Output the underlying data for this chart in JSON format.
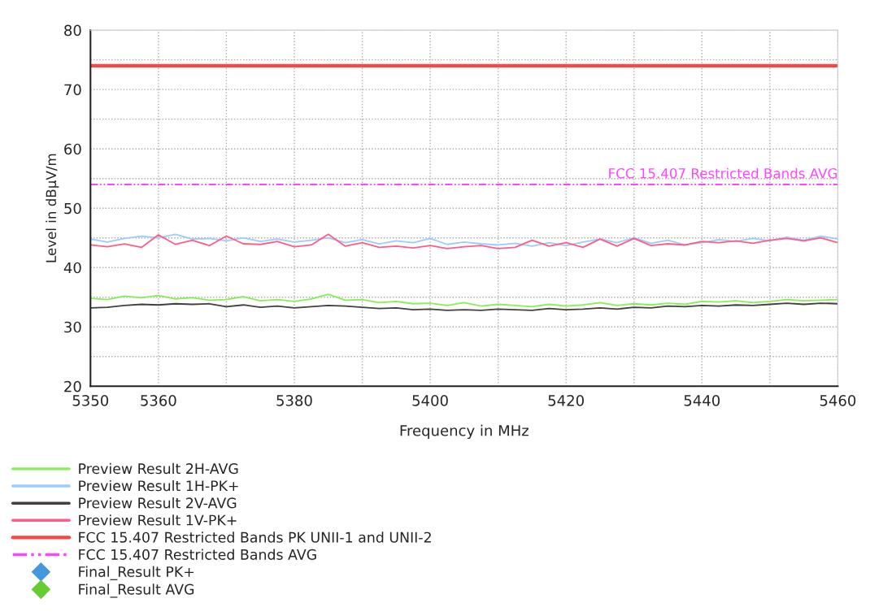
{
  "chart_data": {
    "type": "line",
    "xlabel": "Frequency in MHz",
    "ylabel": "Level in dBµV/m",
    "xlim": [
      5350,
      5460
    ],
    "ylim": [
      20,
      80
    ],
    "xticks": [
      5350,
      5360,
      {
        "value": 5370,
        "label": null
      },
      5380,
      {
        "value": 5390,
        "label": null
      },
      5400,
      {
        "value": 5410,
        "label": null
      },
      5420,
      {
        "value": 5430,
        "label": null
      },
      5440,
      {
        "value": 5450,
        "label": null
      },
      5460
    ],
    "yticks": [
      20,
      {
        "value": 25,
        "label": null
      },
      30,
      {
        "value": 35,
        "label": null
      },
      40,
      {
        "value": 45,
        "label": null
      },
      50,
      {
        "value": 55,
        "label": null
      },
      60,
      {
        "value": 65,
        "label": null
      },
      70,
      {
        "value": 75,
        "label": null
      },
      80
    ],
    "grid": true,
    "legend": "bottom",
    "marker": "none",
    "x": [
      5350,
      5352.5,
      5355,
      5357.5,
      5360,
      5362.5,
      5365,
      5367.5,
      5370,
      5372.5,
      5375,
      5377.5,
      5380,
      5382.5,
      5385,
      5387.5,
      5390,
      5392.5,
      5395,
      5397.5,
      5400,
      5402.5,
      5405,
      5407.5,
      5410,
      5412.5,
      5415,
      5417.5,
      5420,
      5422.5,
      5425,
      5427.5,
      5430,
      5432.5,
      5435,
      5437.5,
      5440,
      5442.5,
      5445,
      5447.5,
      5450,
      5452.5,
      5455,
      5457.5,
      5460
    ],
    "series": [
      {
        "name": "Preview Result 2H-AVG",
        "color": "#88ee55",
        "values": [
          34.8,
          34.6,
          35.2,
          34.9,
          35.3,
          34.7,
          34.9,
          34.5,
          34.6,
          35.1,
          34.4,
          34.6,
          34.3,
          34.7,
          35.5,
          34.5,
          34.6,
          34.1,
          34.3,
          33.9,
          34.0,
          33.6,
          34.1,
          33.5,
          33.8,
          33.6,
          33.4,
          33.8,
          33.5,
          33.7,
          34.1,
          33.6,
          33.9,
          33.7,
          34.0,
          33.8,
          34.3,
          34.2,
          34.4,
          34.1,
          34.3,
          34.6,
          34.4,
          34.5,
          34.6
        ]
      },
      {
        "name": "Preview Result 1H-PK+",
        "color": "#99ccff",
        "values": [
          44.8,
          44.3,
          44.9,
          45.3,
          45.0,
          45.6,
          44.8,
          44.9,
          44.5,
          45.0,
          44.4,
          44.8,
          44.3,
          44.6,
          45.0,
          44.2,
          44.7,
          44.0,
          44.5,
          44.2,
          44.9,
          43.9,
          44.3,
          44.0,
          43.8,
          44.1,
          43.6,
          44.2,
          43.7,
          44.3,
          44.8,
          44.2,
          45.0,
          44.1,
          44.6,
          43.8,
          44.2,
          44.7,
          44.4,
          44.9,
          44.5,
          45.1,
          44.6,
          45.3,
          44.8
        ]
      },
      {
        "name": "Preview Result 2V-AVG",
        "color": "#404040",
        "values": [
          33.2,
          33.3,
          33.6,
          33.8,
          33.7,
          33.9,
          33.8,
          33.9,
          33.4,
          33.7,
          33.3,
          33.5,
          33.2,
          33.4,
          33.6,
          33.5,
          33.3,
          33.1,
          33.2,
          32.9,
          33.0,
          32.8,
          32.9,
          32.8,
          33.0,
          32.9,
          32.8,
          33.1,
          32.9,
          33.0,
          33.2,
          33.0,
          33.3,
          33.2,
          33.5,
          33.4,
          33.6,
          33.5,
          33.7,
          33.6,
          33.8,
          34.0,
          33.8,
          34.0,
          33.9
        ]
      },
      {
        "name": "Preview Result 1V-PK+",
        "color": "#ff5c8a",
        "values": [
          43.8,
          43.5,
          44.0,
          43.4,
          45.5,
          43.9,
          44.6,
          43.7,
          45.3,
          44.0,
          43.9,
          44.4,
          43.5,
          43.8,
          45.6,
          43.6,
          44.2,
          43.4,
          43.6,
          43.3,
          43.7,
          43.2,
          43.5,
          43.7,
          43.2,
          43.4,
          44.6,
          43.6,
          44.2,
          43.4,
          44.8,
          43.6,
          44.9,
          43.7,
          44.0,
          43.8,
          44.4,
          44.2,
          44.5,
          44.1,
          44.6,
          44.9,
          44.5,
          45.0,
          44.2
        ]
      },
      {
        "name": "FCC 15.407 Restricted Bands PK UNII-1 and UNII-2",
        "color": "#ff4444",
        "values": [
          74,
          74,
          74,
          74,
          74,
          74,
          74,
          74,
          74,
          74,
          74,
          74,
          74,
          74,
          74,
          74,
          74,
          74,
          74,
          74,
          74,
          74,
          74,
          74,
          74,
          74,
          74,
          74,
          74,
          74,
          74,
          74,
          74,
          74,
          74,
          74,
          74,
          74,
          74,
          74,
          74,
          74,
          74,
          74,
          74
        ]
      },
      {
        "name": "FCC 15.407 Restricted Bands AVG",
        "color": "#ff44ff",
        "line_style": "dashdot",
        "values": [
          54,
          54,
          54,
          54,
          54,
          54,
          54,
          54,
          54,
          54,
          54,
          54,
          54,
          54,
          54,
          54,
          54,
          54,
          54,
          54,
          54,
          54,
          54,
          54,
          54,
          54,
          54,
          54,
          54,
          54,
          54,
          54,
          54,
          54,
          54,
          54,
          54,
          54,
          54,
          54,
          54,
          54,
          54,
          54,
          54
        ]
      }
    ],
    "annotations": [
      {
        "text": "FCC 15.407 Restricted Bands AVG",
        "x": 5460,
        "y": 54
      },
      "Final_Result PK+",
      "Final_Result AVG"
    ]
  }
}
